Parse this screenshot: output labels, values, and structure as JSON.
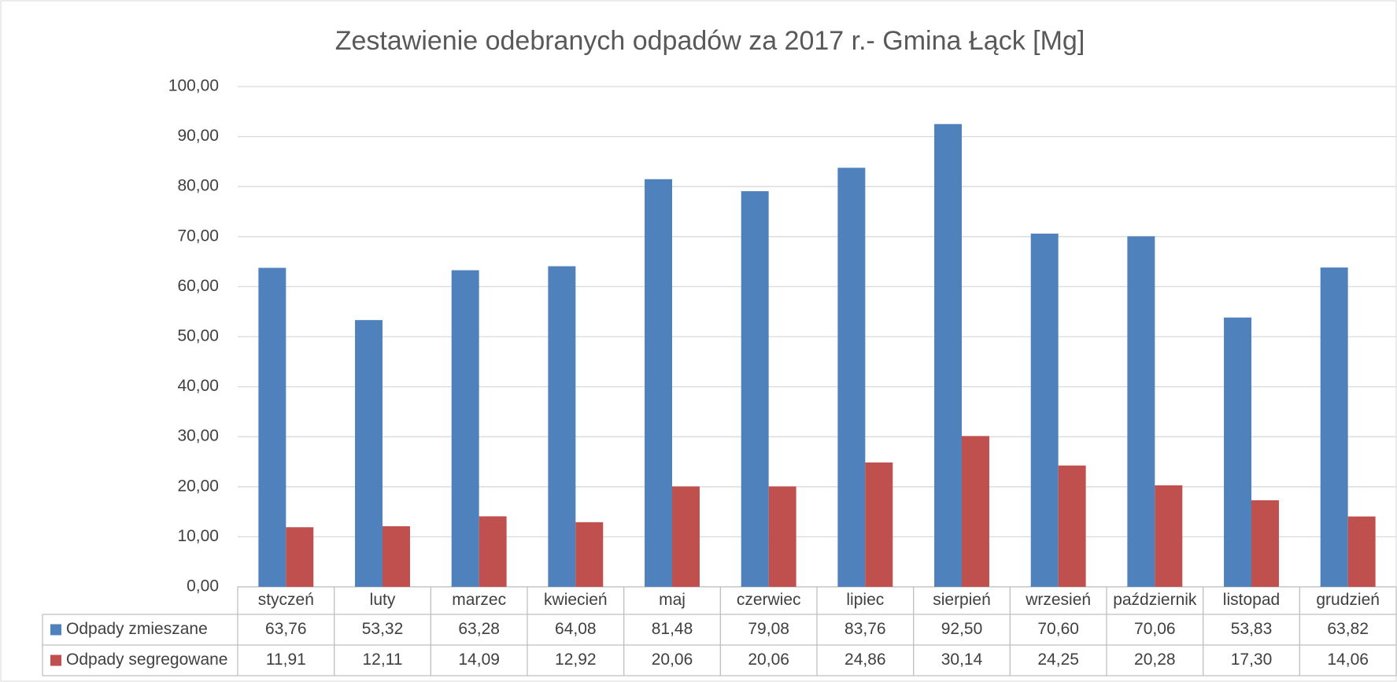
{
  "chart_data": {
    "type": "bar",
    "title": "Zestawienie odebranych odpadów za 2017 r.- Gmina Łąck [Mg]",
    "categories": [
      "styczeń",
      "luty",
      "marzec",
      "kwiecień",
      "maj",
      "czerwiec",
      "lipiec",
      "sierpień",
      "wrzesień",
      "październik",
      "listopad",
      "grudzień"
    ],
    "series": [
      {
        "name": "Odpady zmieszane",
        "color": "#4f81bd",
        "values": [
          63.76,
          53.32,
          63.28,
          64.08,
          81.48,
          79.08,
          83.76,
          92.5,
          70.6,
          70.06,
          53.83,
          63.82
        ],
        "value_labels": [
          "63,76",
          "53,32",
          "63,28",
          "64,08",
          "81,48",
          "79,08",
          "83,76",
          "92,50",
          "70,60",
          "70,06",
          "53,83",
          "63,82"
        ]
      },
      {
        "name": "Odpady segregowane",
        "color": "#c0504d",
        "values": [
          11.91,
          12.11,
          14.09,
          12.92,
          20.06,
          20.06,
          24.86,
          30.14,
          24.25,
          20.28,
          17.3,
          14.06
        ],
        "value_labels": [
          "11,91",
          "12,11",
          "14,09",
          "12,92",
          "20,06",
          "20,06",
          "24,86",
          "30,14",
          "24,25",
          "20,28",
          "17,30",
          "14,06"
        ]
      }
    ],
    "ylim": [
      0,
      100
    ],
    "yticks": [
      {
        "value": 0,
        "label": "0,00"
      },
      {
        "value": 10,
        "label": "10,00"
      },
      {
        "value": 20,
        "label": "20,00"
      },
      {
        "value": 30,
        "label": "30,00"
      },
      {
        "value": 40,
        "label": "40,00"
      },
      {
        "value": 50,
        "label": "50,00"
      },
      {
        "value": 60,
        "label": "60,00"
      },
      {
        "value": 70,
        "label": "70,00"
      },
      {
        "value": 80,
        "label": "80,00"
      },
      {
        "value": 90,
        "label": "90,00"
      },
      {
        "value": 100,
        "label": "100,00"
      }
    ],
    "grid": true
  }
}
